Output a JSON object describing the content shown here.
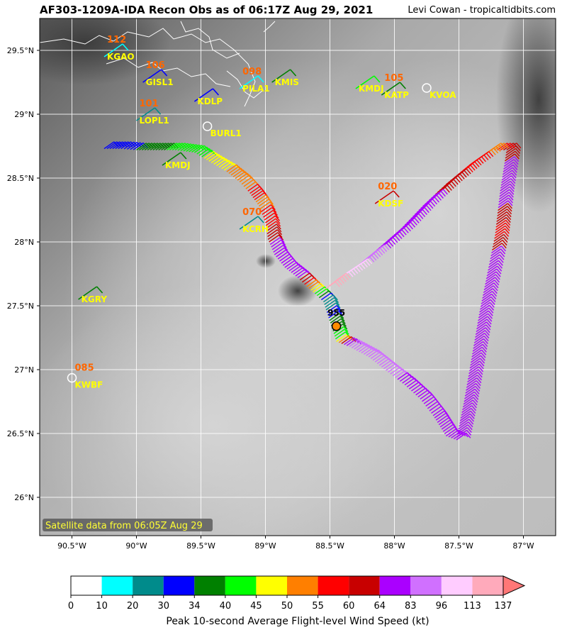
{
  "header": {
    "title": "AF303-1209A-IDA Recon Obs as of 06:17Z Aug 29, 2021",
    "credit": "Levi Cowan - tropicaltidbits.com"
  },
  "map": {
    "lon_range": [
      -90.75,
      -86.75
    ],
    "lat_range": [
      25.7,
      29.75
    ],
    "lon_ticks": [
      {
        "v": -90.5,
        "label": "90.5°W"
      },
      {
        "v": -90.0,
        "label": "90°W"
      },
      {
        "v": -89.5,
        "label": "89.5°W"
      },
      {
        "v": -89.0,
        "label": "89°W"
      },
      {
        "v": -88.5,
        "label": "88.5°W"
      },
      {
        "v": -88.0,
        "label": "88°W"
      },
      {
        "v": -87.5,
        "label": "87.5°W"
      },
      {
        "v": -87.0,
        "label": "87°W"
      }
    ],
    "lat_ticks": [
      {
        "v": 26.0,
        "label": "26°N"
      },
      {
        "v": 26.5,
        "label": "26.5°N"
      },
      {
        "v": 27.0,
        "label": "27°N"
      },
      {
        "v": 27.5,
        "label": "27.5°N"
      },
      {
        "v": 28.0,
        "label": "28°N"
      },
      {
        "v": 28.5,
        "label": "28.5°N"
      },
      {
        "v": 29.0,
        "label": "29°N"
      },
      {
        "v": 29.5,
        "label": "29.5°N"
      }
    ],
    "satellite_note": "Satellite data from 06:05Z Aug 29",
    "stations": [
      {
        "id": "KGAO",
        "lon": -90.25,
        "lat": 29.45,
        "value": "112",
        "wind": 13
      },
      {
        "id": "GISL1",
        "lon": -89.95,
        "lat": 29.25,
        "value": "106",
        "wind": 30
      },
      {
        "id": "KDLP",
        "lon": -89.55,
        "lat": 29.1,
        "value": "",
        "wind": 30
      },
      {
        "id": "PILA1",
        "lon": -89.2,
        "lat": 29.2,
        "value": "098",
        "wind": 13
      },
      {
        "id": "KMIS",
        "lon": -88.95,
        "lat": 29.25,
        "value": "",
        "wind": 34
      },
      {
        "id": "KMDJ",
        "lon": -88.3,
        "lat": 29.2,
        "value": "",
        "wind": 40
      },
      {
        "id": "KATP",
        "lon": -88.1,
        "lat": 29.15,
        "value": "105",
        "wind": 34
      },
      {
        "id": "KVOA",
        "lon": -87.75,
        "lat": 29.15,
        "value": "",
        "wind": 0
      },
      {
        "id": "LOPL1",
        "lon": -90.0,
        "lat": 28.95,
        "value": "101",
        "wind": 20
      },
      {
        "id": "BURL1",
        "lon": -89.45,
        "lat": 28.85,
        "value": "",
        "wind": 0
      },
      {
        "id": "KMDJ",
        "lon": -89.8,
        "lat": 28.6,
        "value": "",
        "wind": 34
      },
      {
        "id": "KDSF",
        "lon": -88.15,
        "lat": 28.3,
        "value": "020",
        "wind": 60
      },
      {
        "id": "KCRH",
        "lon": -89.2,
        "lat": 28.1,
        "value": "070",
        "wind": 20
      },
      {
        "id": "KGRY",
        "lon": -90.45,
        "lat": 27.55,
        "value": "",
        "wind": 34
      },
      {
        "id": "KWBF",
        "lon": -90.5,
        "lat": 26.88,
        "value": "085",
        "wind": 0
      }
    ],
    "pressure_marker": {
      "lon": -88.45,
      "lat": 27.34,
      "label": "955"
    }
  },
  "flight_track": [
    {
      "lon": -90.25,
      "lat": 28.73,
      "w": 30
    },
    {
      "lon": -90.12,
      "lat": 28.73,
      "w": 32
    },
    {
      "lon": -90.0,
      "lat": 28.72,
      "w": 34
    },
    {
      "lon": -89.85,
      "lat": 28.72,
      "w": 38
    },
    {
      "lon": -89.7,
      "lat": 28.72,
      "w": 42
    },
    {
      "lon": -89.55,
      "lat": 28.7,
      "w": 44
    },
    {
      "lon": -89.42,
      "lat": 28.62,
      "w": 46
    },
    {
      "lon": -89.3,
      "lat": 28.55,
      "w": 50
    },
    {
      "lon": -89.2,
      "lat": 28.47,
      "w": 52
    },
    {
      "lon": -89.12,
      "lat": 28.38,
      "w": 56
    },
    {
      "lon": -89.05,
      "lat": 28.28,
      "w": 54
    },
    {
      "lon": -89.0,
      "lat": 28.15,
      "w": 58
    },
    {
      "lon": -88.98,
      "lat": 28.02,
      "w": 62
    },
    {
      "lon": -88.93,
      "lat": 27.9,
      "w": 70
    },
    {
      "lon": -88.85,
      "lat": 27.8,
      "w": 72
    },
    {
      "lon": -88.75,
      "lat": 27.72,
      "w": 66
    },
    {
      "lon": -88.68,
      "lat": 27.65,
      "w": 54
    },
    {
      "lon": -88.6,
      "lat": 27.58,
      "w": 40
    },
    {
      "lon": -88.55,
      "lat": 27.53,
      "w": 25
    },
    {
      "lon": -88.45,
      "lat": 27.22,
      "w": 45
    },
    {
      "lon": -88.35,
      "lat": 27.18,
      "w": 92
    },
    {
      "lon": -88.2,
      "lat": 27.1,
      "w": 95
    },
    {
      "lon": -88.05,
      "lat": 26.98,
      "w": 88
    },
    {
      "lon": -87.92,
      "lat": 26.88,
      "w": 78
    },
    {
      "lon": -87.8,
      "lat": 26.77,
      "w": 72
    },
    {
      "lon": -87.7,
      "lat": 26.64,
      "w": 70
    },
    {
      "lon": -87.6,
      "lat": 26.48,
      "w": 70
    },
    {
      "lon": -87.52,
      "lat": 26.45,
      "w": 68
    },
    {
      "lon": -87.46,
      "lat": 26.75,
      "w": 70
    },
    {
      "lon": -87.4,
      "lat": 27.1,
      "w": 72
    },
    {
      "lon": -87.34,
      "lat": 27.45,
      "w": 72
    },
    {
      "lon": -87.27,
      "lat": 27.8,
      "w": 70
    },
    {
      "lon": -87.22,
      "lat": 28.05,
      "w": 58
    },
    {
      "lon": -87.18,
      "lat": 28.4,
      "w": 68
    },
    {
      "lon": -87.13,
      "lat": 28.72,
      "w": 62
    },
    {
      "lon": -87.25,
      "lat": 28.72,
      "w": 52
    },
    {
      "lon": -87.42,
      "lat": 28.6,
      "w": 58
    },
    {
      "lon": -87.6,
      "lat": 28.45,
      "w": 62
    },
    {
      "lon": -87.78,
      "lat": 28.28,
      "w": 66
    },
    {
      "lon": -87.95,
      "lat": 28.1,
      "w": 70
    },
    {
      "lon": -88.12,
      "lat": 27.95,
      "w": 80
    },
    {
      "lon": -88.3,
      "lat": 27.8,
      "w": 98
    },
    {
      "lon": -88.45,
      "lat": 27.7,
      "w": 115
    },
    {
      "lon": -88.55,
      "lat": 27.62,
      "w": 118
    }
  ],
  "colorbar": {
    "label": "Peak 10-second Average Flight-level Wind Speed (kt)",
    "ticks": [
      "0",
      "10",
      "20",
      "30",
      "34",
      "40",
      "45",
      "50",
      "55",
      "60",
      "64",
      "83",
      "96",
      "113",
      "137"
    ],
    "colors": [
      "#ffffff",
      "#00ffff",
      "#008b8b",
      "#0000ff",
      "#008000",
      "#00ff00",
      "#ffff00",
      "#ff7f00",
      "#ff0000",
      "#c80000",
      "#aa00ff",
      "#d070ff",
      "#ffccff",
      "#ffaabb"
    ],
    "extend_color": "#ff7777"
  }
}
